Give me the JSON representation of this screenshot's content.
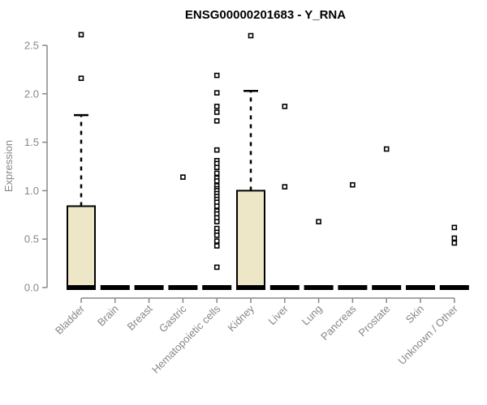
{
  "chart_data": {
    "type": "boxplot",
    "title": "ENSG00000201683 - Y_RNA",
    "ylabel": "Expression",
    "xlabel": "",
    "ylim": [
      0,
      2.5
    ],
    "yticks": [
      0.0,
      0.5,
      1.0,
      1.5,
      2.0,
      2.5
    ],
    "grid": false,
    "legend": false,
    "categories": [
      "Bladder",
      "Brain",
      "Breast",
      "Gastric",
      "Hematopoietic cells",
      "Kidney",
      "Liver",
      "Lung",
      "Pancreas",
      "Prostate",
      "Skin",
      "Unknown / Other"
    ],
    "series": [
      {
        "category": "Bladder",
        "whisker_low": 0,
        "q1": 0,
        "median": 0,
        "q3": 0.84,
        "whisker_high": 1.78,
        "outliers": [
          2.61,
          2.16
        ]
      },
      {
        "category": "Brain",
        "whisker_low": 0,
        "q1": 0,
        "median": 0,
        "q3": 0,
        "whisker_high": 0,
        "outliers": []
      },
      {
        "category": "Breast",
        "whisker_low": 0,
        "q1": 0,
        "median": 0,
        "q3": 0,
        "whisker_high": 0,
        "outliers": []
      },
      {
        "category": "Gastric",
        "whisker_low": 0,
        "q1": 0,
        "median": 0,
        "q3": 0,
        "whisker_high": 0,
        "outliers": [
          1.14
        ]
      },
      {
        "category": "Hematopoietic cells",
        "whisker_low": 0,
        "q1": 0,
        "median": 0,
        "q3": 0,
        "whisker_high": 0,
        "outliers": [
          2.19,
          2.01,
          1.87,
          1.81,
          1.72,
          1.42,
          1.31,
          1.28,
          1.24,
          1.18,
          1.13,
          1.1,
          1.05,
          1.02,
          1.0,
          0.97,
          0.94,
          0.91,
          0.88,
          0.84,
          0.79,
          0.76,
          0.72,
          0.68,
          0.61,
          0.57,
          0.54,
          0.48,
          0.43,
          0.21
        ]
      },
      {
        "category": "Kidney",
        "whisker_low": 0,
        "q1": 0,
        "median": 0,
        "q3": 1.0,
        "whisker_high": 2.03,
        "outliers": [
          2.6
        ]
      },
      {
        "category": "Liver",
        "whisker_low": 0,
        "q1": 0,
        "median": 0,
        "q3": 0,
        "whisker_high": 0,
        "outliers": [
          1.87,
          1.04
        ]
      },
      {
        "category": "Lung",
        "whisker_low": 0,
        "q1": 0,
        "median": 0,
        "q3": 0,
        "whisker_high": 0,
        "outliers": [
          0.68
        ]
      },
      {
        "category": "Pancreas",
        "whisker_low": 0,
        "q1": 0,
        "median": 0,
        "q3": 0,
        "whisker_high": 0,
        "outliers": [
          1.06
        ]
      },
      {
        "category": "Prostate",
        "whisker_low": 0,
        "q1": 0,
        "median": 0,
        "q3": 0,
        "whisker_high": 0,
        "outliers": [
          1.43
        ]
      },
      {
        "category": "Skin",
        "whisker_low": 0,
        "q1": 0,
        "median": 0,
        "q3": 0,
        "whisker_high": 0,
        "outliers": []
      },
      {
        "category": "Unknown / Other",
        "whisker_low": 0,
        "q1": 0,
        "median": 0,
        "q3": 0,
        "whisker_high": 0,
        "outliers": [
          0.62,
          0.51,
          0.46
        ]
      }
    ],
    "colors": {
      "box_fill": "#EDE7C8",
      "box_stroke": "#000000",
      "median": "#000000",
      "whisker": "#000000",
      "outlier_stroke": "#000000",
      "outlier_fill": "#FFFFFF",
      "axis": "#888888",
      "tick_label": "#878787",
      "title": "#000000",
      "background": "#FFFFFF"
    }
  }
}
